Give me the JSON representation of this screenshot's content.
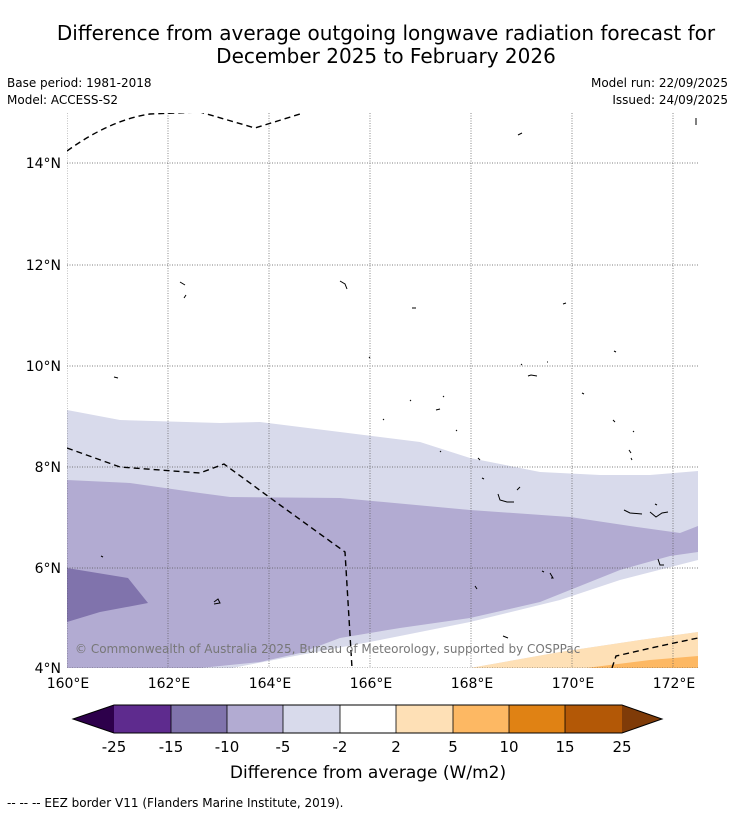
{
  "title_line1": "Difference from average outgoing longwave radiation forecast for",
  "title_line2": "December 2025 to February 2026",
  "base_period": "Base period: 1981-2018",
  "model": "Model: ACCESS-S2",
  "model_run": "Model run: 22/09/2025",
  "issued": "Issued: 24/09/2025",
  "copyright": "© Commonwealth of Australia 2025, Bureau of Meteorology, supported by COSPPac",
  "lat_labels": [
    "14°N",
    "12°N",
    "10°N",
    "8°N",
    "6°N",
    "4°N"
  ],
  "lon_labels": [
    "160°E",
    "162°E",
    "164°E",
    "166°E",
    "168°E",
    "170°E",
    "172°E"
  ],
  "colorbar": {
    "label": "Difference from average (W/m2)",
    "ticks": [
      "-25",
      "-15",
      "-10",
      "-5",
      "-2",
      "2",
      "5",
      "10",
      "15",
      "25"
    ],
    "colors": {
      "below_min": "#2d004b",
      "n25_n15": "#5e2b8e",
      "n15_n10": "#8073ac",
      "n10_n5": "#b2abd2",
      "n5_n2": "#d8daeb",
      "n2_p2": "#ffffff",
      "p2_p5": "#fee0b6",
      "p5_p10": "#fdb863",
      "p10_p15": "#e08214",
      "p15_p25": "#b35806",
      "above_max": "#7f3b08"
    }
  },
  "legend_note": "--  --  -- EEZ border V11 (Flanders Marine Institute, 2019)."
}
